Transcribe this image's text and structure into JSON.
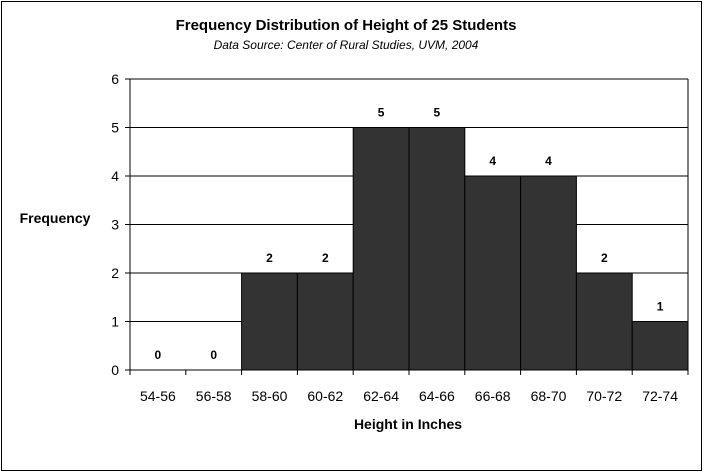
{
  "chart_data": {
    "type": "bar",
    "title": "Frequency Distribution of Height of 25 Students",
    "subtitle": "Data Source: Center of Rural Studies, UVM, 2004",
    "xlabel": "Height in Inches",
    "ylabel": "Frequency",
    "categories": [
      "54-56",
      "56-58",
      "58-60",
      "60-62",
      "62-64",
      "64-66",
      "66-68",
      "68-70",
      "70-72",
      "72-74"
    ],
    "values": [
      0,
      0,
      2,
      2,
      5,
      5,
      4,
      4,
      2,
      1
    ],
    "data_labels": [
      "0",
      "0",
      "2",
      "2",
      "5",
      "5",
      "4",
      "4",
      "2",
      "1"
    ],
    "ylim": [
      0,
      6
    ],
    "yticks": [
      "0",
      "1",
      "2",
      "3",
      "4",
      "5",
      "6"
    ],
    "grid": true,
    "bar_color": "#333333",
    "gridline_color": "#000000"
  }
}
